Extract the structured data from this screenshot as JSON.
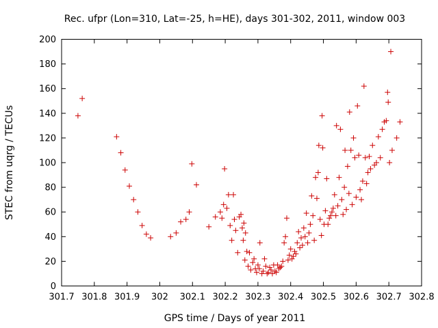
{
  "chart_data": {
    "type": "scatter",
    "title": "Rec. ufpr (Lon=310, Lat=-25, h=HE), days 301-302, 2011, window 003",
    "xlabel": "GPS time / Days of year 2011",
    "ylabel": "STEC from uqrg / TECUs",
    "xlim": [
      301.7,
      302.8
    ],
    "ylim": [
      0,
      200
    ],
    "xticks": [
      "301.7",
      "301.8",
      "301.9",
      "302",
      "302.1",
      "302.2",
      "302.3",
      "302.4",
      "302.5",
      "302.6",
      "302.7",
      "302.8"
    ],
    "yticks": [
      "0",
      "20",
      "40",
      "60",
      "80",
      "100",
      "120",
      "140",
      "160",
      "180",
      "200"
    ],
    "grid": false,
    "marker": "plus",
    "color": "#cc0000",
    "series": [
      {
        "points": [
          [
            301.75,
            138
          ],
          [
            301.763,
            152
          ],
          [
            301.868,
            121
          ],
          [
            301.881,
            108
          ],
          [
            301.894,
            94
          ],
          [
            301.907,
            81
          ],
          [
            301.92,
            70
          ],
          [
            301.933,
            60
          ],
          [
            301.946,
            49
          ],
          [
            301.959,
            42
          ],
          [
            301.972,
            39
          ],
          [
            302.033,
            40
          ],
          [
            302.05,
            43
          ],
          [
            302.064,
            52
          ],
          [
            302.08,
            54
          ],
          [
            302.09,
            60
          ],
          [
            302.098,
            99
          ],
          [
            302.112,
            82
          ],
          [
            302.15,
            48
          ],
          [
            302.17,
            56
          ],
          [
            302.185,
            60
          ],
          [
            302.19,
            55
          ],
          [
            302.195,
            66
          ],
          [
            302.198,
            95
          ],
          [
            302.205,
            63
          ],
          [
            302.21,
            74
          ],
          [
            302.215,
            49
          ],
          [
            302.22,
            37
          ],
          [
            302.225,
            74
          ],
          [
            302.228,
            54
          ],
          [
            302.232,
            45
          ],
          [
            302.238,
            27
          ],
          [
            302.243,
            56
          ],
          [
            302.248,
            58
          ],
          [
            302.252,
            47
          ],
          [
            302.255,
            37
          ],
          [
            302.257,
            51
          ],
          [
            302.26,
            21
          ],
          [
            302.262,
            43
          ],
          [
            302.266,
            28
          ],
          [
            302.27,
            16
          ],
          [
            302.274,
            27
          ],
          [
            302.278,
            13
          ],
          [
            302.284,
            19
          ],
          [
            302.288,
            22
          ],
          [
            302.292,
            14
          ],
          [
            302.296,
            11
          ],
          [
            302.3,
            17
          ],
          [
            302.304,
            14
          ],
          [
            302.306,
            35
          ],
          [
            302.312,
            10
          ],
          [
            302.316,
            12
          ],
          [
            302.32,
            22
          ],
          [
            302.324,
            16
          ],
          [
            302.328,
            10
          ],
          [
            302.332,
            11
          ],
          [
            302.336,
            15
          ],
          [
            302.34,
            13
          ],
          [
            302.344,
            10
          ],
          [
            302.348,
            17
          ],
          [
            302.352,
            12
          ],
          [
            302.356,
            11
          ],
          [
            302.36,
            17
          ],
          [
            302.364,
            14
          ],
          [
            302.368,
            15
          ],
          [
            302.372,
            16
          ],
          [
            302.376,
            20
          ],
          [
            302.38,
            35
          ],
          [
            302.384,
            40
          ],
          [
            302.388,
            55
          ],
          [
            302.392,
            21
          ],
          [
            302.396,
            25
          ],
          [
            302.4,
            30
          ],
          [
            302.404,
            22
          ],
          [
            302.408,
            24
          ],
          [
            302.412,
            28
          ],
          [
            302.416,
            26
          ],
          [
            302.42,
            35
          ],
          [
            302.424,
            44
          ],
          [
            302.428,
            31
          ],
          [
            302.432,
            39
          ],
          [
            302.436,
            33
          ],
          [
            302.44,
            47
          ],
          [
            302.444,
            40
          ],
          [
            302.448,
            59
          ],
          [
            302.452,
            35
          ],
          [
            302.456,
            43
          ],
          [
            302.46,
            50
          ],
          [
            302.464,
            73
          ],
          [
            302.468,
            57
          ],
          [
            302.472,
            37
          ],
          [
            302.476,
            88
          ],
          [
            302.48,
            71
          ],
          [
            302.484,
            92
          ],
          [
            302.486,
            114
          ],
          [
            302.49,
            54
          ],
          [
            302.494,
            41
          ],
          [
            302.496,
            138
          ],
          [
            302.498,
            112
          ],
          [
            302.502,
            50
          ],
          [
            302.506,
            61
          ],
          [
            302.51,
            87
          ],
          [
            302.514,
            50
          ],
          [
            302.518,
            55
          ],
          [
            302.522,
            57
          ],
          [
            302.526,
            60
          ],
          [
            302.53,
            63
          ],
          [
            302.534,
            74
          ],
          [
            302.538,
            57
          ],
          [
            302.54,
            130
          ],
          [
            302.544,
            65
          ],
          [
            302.548,
            88
          ],
          [
            302.552,
            127
          ],
          [
            302.556,
            70
          ],
          [
            302.56,
            58
          ],
          [
            302.564,
            80
          ],
          [
            302.566,
            110
          ],
          [
            302.57,
            62
          ],
          [
            302.574,
            97
          ],
          [
            302.578,
            75
          ],
          [
            302.58,
            141
          ],
          [
            302.584,
            110
          ],
          [
            302.588,
            66
          ],
          [
            302.592,
            120
          ],
          [
            302.596,
            104
          ],
          [
            302.6,
            72
          ],
          [
            302.604,
            146
          ],
          [
            302.608,
            106
          ],
          [
            302.612,
            78
          ],
          [
            302.616,
            70
          ],
          [
            302.62,
            85
          ],
          [
            302.624,
            162
          ],
          [
            302.628,
            104
          ],
          [
            302.632,
            83
          ],
          [
            302.636,
            92
          ],
          [
            302.64,
            105
          ],
          [
            302.644,
            95
          ],
          [
            302.65,
            114
          ],
          [
            302.656,
            98
          ],
          [
            302.662,
            100
          ],
          [
            302.668,
            121
          ],
          [
            302.674,
            104
          ],
          [
            302.68,
            127
          ],
          [
            302.686,
            133
          ],
          [
            302.692,
            134
          ],
          [
            302.696,
            157
          ],
          [
            302.698,
            149
          ],
          [
            302.702,
            100
          ],
          [
            302.706,
            190
          ],
          [
            302.71,
            110
          ],
          [
            302.724,
            120
          ],
          [
            302.734,
            133
          ]
        ]
      }
    ]
  }
}
